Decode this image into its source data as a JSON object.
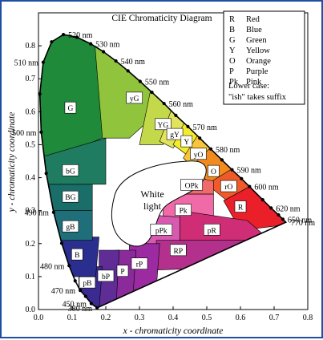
{
  "chart_data": {
    "type": "diagram",
    "title": "CIE Chromaticity Diagram",
    "xlabel": "x - chromaticity coordinate",
    "ylabel": "y - chromaticity coordinate",
    "xlim": [
      0.0,
      0.8
    ],
    "ylim": [
      0.0,
      0.9
    ],
    "x_ticks": [
      "0.0",
      "0.1",
      "0.2",
      "0.3",
      "0.4",
      "0.5",
      "0.6",
      "0.7",
      "0.8"
    ],
    "y_ticks": [
      "0.0",
      "0.1",
      "0.2",
      "0.3",
      "0.4",
      "0.5",
      "0.6",
      "0.7",
      "0.8"
    ],
    "center_label": [
      "White",
      "light"
    ],
    "legend": [
      {
        "key": "R",
        "text": "Red"
      },
      {
        "key": "B",
        "text": "Blue"
      },
      {
        "key": "G",
        "text": "Green"
      },
      {
        "key": "Y",
        "text": "Yellow"
      },
      {
        "key": "O",
        "text": "Orange"
      },
      {
        "key": "P",
        "text": "Purple"
      },
      {
        "key": "Pk",
        "text": "Pink"
      }
    ],
    "legend_note": [
      "Lower case:",
      "\"ish\" takes suffix"
    ],
    "wavelength_labels": [
      {
        "text": "520 nm",
        "x": 0.074,
        "y": 0.834
      },
      {
        "text": "530 nm",
        "x": 0.155,
        "y": 0.806
      },
      {
        "text": "540 nm",
        "x": 0.23,
        "y": 0.754
      },
      {
        "text": "550 nm",
        "x": 0.302,
        "y": 0.692
      },
      {
        "text": "560 nm",
        "x": 0.373,
        "y": 0.625
      },
      {
        "text": "570 nm",
        "x": 0.444,
        "y": 0.555
      },
      {
        "text": "580 nm",
        "x": 0.512,
        "y": 0.487
      },
      {
        "text": "590 nm",
        "x": 0.575,
        "y": 0.424
      },
      {
        "text": "600 nm",
        "x": 0.627,
        "y": 0.373
      },
      {
        "text": "620 nm",
        "x": 0.691,
        "y": 0.308
      },
      {
        "text": "650 nm",
        "x": 0.726,
        "y": 0.274
      },
      {
        "text": "770 nm",
        "x": 0.735,
        "y": 0.265
      },
      {
        "text": "510 nm",
        "x": 0.014,
        "y": 0.75
      },
      {
        "text": "500 nm",
        "x": 0.008,
        "y": 0.538
      },
      {
        "text": "490 nm",
        "x": 0.045,
        "y": 0.295
      },
      {
        "text": "480 nm",
        "x": 0.091,
        "y": 0.133
      },
      {
        "text": "470 nm",
        "x": 0.124,
        "y": 0.058
      },
      {
        "text": "450 nm",
        "x": 0.157,
        "y": 0.018
      },
      {
        "text": "380 nm",
        "x": 0.174,
        "y": 0.005
      }
    ],
    "regions": [
      {
        "label": "G",
        "color": "#1f8a3a",
        "x": 0.095,
        "y": 0.61
      },
      {
        "label": "yG",
        "color": "#8fc43c",
        "x": 0.285,
        "y": 0.64
      },
      {
        "label": "YG",
        "color": "#c4d94a",
        "x": 0.37,
        "y": 0.56
      },
      {
        "label": "gY",
        "color": "#e0e35b",
        "x": 0.405,
        "y": 0.53
      },
      {
        "label": "Y",
        "color": "#f3ec2c",
        "x": 0.44,
        "y": 0.508
      },
      {
        "label": "yO",
        "color": "#f8c43a",
        "x": 0.475,
        "y": 0.47
      },
      {
        "label": "O",
        "color": "#f28a1e",
        "x": 0.52,
        "y": 0.418
      },
      {
        "label": "rO",
        "color": "#ee5a2a",
        "x": 0.565,
        "y": 0.372
      },
      {
        "label": "R",
        "color": "#ea1f29",
        "x": 0.6,
        "y": 0.31
      },
      {
        "label": "OPk",
        "color": "#f06a6a",
        "x": 0.455,
        "y": 0.376
      },
      {
        "label": "Pk",
        "color": "#ef6aa6",
        "x": 0.43,
        "y": 0.3
      },
      {
        "label": "pPk",
        "color": "#d85ab0",
        "x": 0.365,
        "y": 0.24
      },
      {
        "label": "pR",
        "color": "#cf2e77",
        "x": 0.515,
        "y": 0.24
      },
      {
        "label": "RP",
        "color": "#b3308c",
        "x": 0.415,
        "y": 0.178
      },
      {
        "label": "rP",
        "color": "#9c2aa0",
        "x": 0.3,
        "y": 0.137
      },
      {
        "label": "P",
        "color": "#8a2a9b",
        "x": 0.25,
        "y": 0.115
      },
      {
        "label": "bP",
        "color": "#5f2d95",
        "x": 0.2,
        "y": 0.1
      },
      {
        "label": "pB",
        "color": "#3b2a8f",
        "x": 0.145,
        "y": 0.08
      },
      {
        "label": "B",
        "color": "#2a2e8f",
        "x": 0.115,
        "y": 0.165
      },
      {
        "label": "gB",
        "color": "#1f6f7a",
        "x": 0.095,
        "y": 0.25
      },
      {
        "label": "BG",
        "color": "#1a6e6a",
        "x": 0.095,
        "y": 0.34
      },
      {
        "label": "bG",
        "color": "#1f7c60",
        "x": 0.095,
        "y": 0.42
      }
    ]
  }
}
